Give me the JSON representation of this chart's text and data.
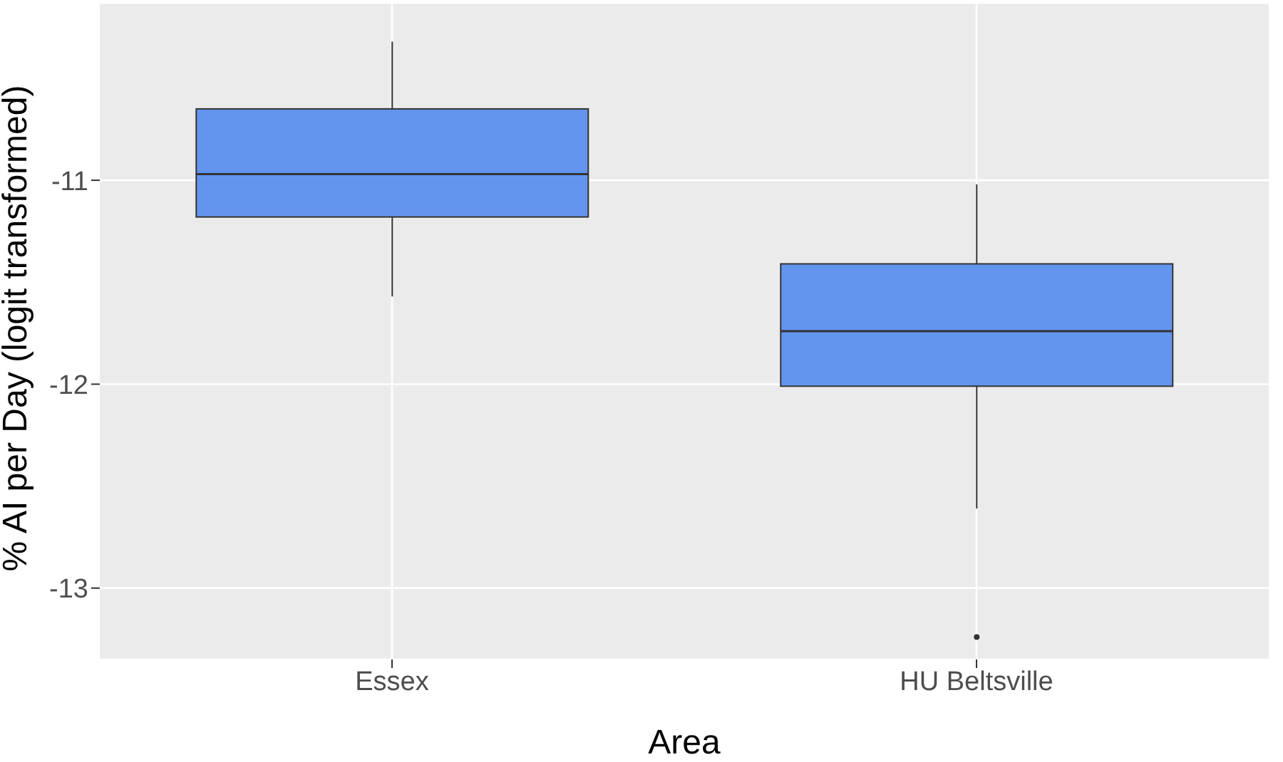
{
  "chart_data": {
    "type": "box",
    "xlabel": "Area",
    "ylabel": "% AI per Day (logit transformed)",
    "categories": [
      "Essex",
      "HU Beltsville"
    ],
    "boxes": [
      {
        "low": -11.57,
        "q1": -11.18,
        "median": -10.97,
        "q3": -10.65,
        "high": -10.32
      },
      {
        "low": -12.61,
        "q1": -12.01,
        "median": -11.74,
        "q3": -11.41,
        "high": -11.02,
        "outliers": [
          -13.24
        ]
      }
    ],
    "color": "#6495ed",
    "ylim": [
      -13.35,
      -10.13
    ],
    "yticks": [
      -13,
      -12,
      -11
    ],
    "grid": true
  }
}
